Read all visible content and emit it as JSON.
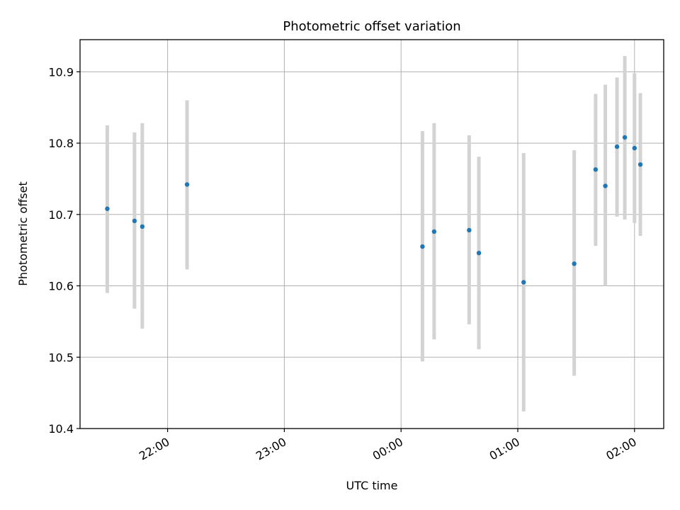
{
  "chart_data": {
    "type": "scatter",
    "title": "Photometric offset variation",
    "xlabel": "UTC time",
    "ylabel": "Photometric offset",
    "ylim": [
      10.4,
      10.945
    ],
    "xlim": [
      "21:15",
      "02:15"
    ],
    "grid": true,
    "x_ticks": [
      "22:00",
      "23:00",
      "00:00",
      "01:00",
      "02:00"
    ],
    "y_ticks": [
      "10.4",
      "10.5",
      "10.6",
      "10.7",
      "10.8",
      "10.9"
    ],
    "points": [
      {
        "time": "21:29",
        "y": 10.708,
        "ylow": 10.59,
        "yhigh": 10.825
      },
      {
        "time": "21:43",
        "y": 10.691,
        "ylow": 10.568,
        "yhigh": 10.815
      },
      {
        "time": "21:47",
        "y": 10.683,
        "ylow": 10.54,
        "yhigh": 10.828
      },
      {
        "time": "22:10",
        "y": 10.742,
        "ylow": 10.623,
        "yhigh": 10.86
      },
      {
        "time": "00:11",
        "y": 10.655,
        "ylow": 10.494,
        "yhigh": 10.817
      },
      {
        "time": "00:17",
        "y": 10.676,
        "ylow": 10.525,
        "yhigh": 10.828
      },
      {
        "time": "00:35",
        "y": 10.678,
        "ylow": 10.546,
        "yhigh": 10.811
      },
      {
        "time": "00:40",
        "y": 10.646,
        "ylow": 10.511,
        "yhigh": 10.781
      },
      {
        "time": "01:03",
        "y": 10.605,
        "ylow": 10.424,
        "yhigh": 10.786
      },
      {
        "time": "01:29",
        "y": 10.631,
        "ylow": 10.474,
        "yhigh": 10.79
      },
      {
        "time": "01:40",
        "y": 10.763,
        "ylow": 10.656,
        "yhigh": 10.869
      },
      {
        "time": "01:45",
        "y": 10.74,
        "ylow": 10.6,
        "yhigh": 10.882
      },
      {
        "time": "01:51",
        "y": 10.795,
        "ylow": 10.697,
        "yhigh": 10.892
      },
      {
        "time": "01:55",
        "y": 10.808,
        "ylow": 10.693,
        "yhigh": 10.922
      },
      {
        "time": "02:00",
        "y": 10.793,
        "ylow": 10.688,
        "yhigh": 10.898
      },
      {
        "time": "02:03",
        "y": 10.77,
        "ylow": 10.67,
        "yhigh": 10.87
      }
    ],
    "colors": {
      "point": "#1f77b4",
      "errorbar": "#d3d3d3",
      "grid": "#b0b0b0"
    }
  }
}
